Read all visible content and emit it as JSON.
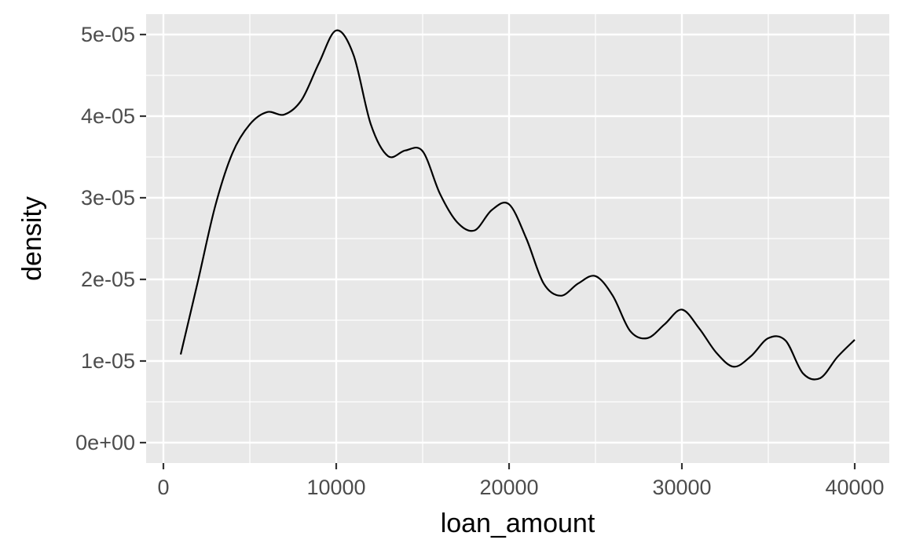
{
  "chart_data": {
    "type": "line",
    "title": "",
    "xlabel": "loan_amount",
    "ylabel": "density",
    "xlim": [
      -1000,
      42000
    ],
    "ylim": [
      -2.5e-06,
      5.25e-05
    ],
    "x_ticks": [
      {
        "value": 0,
        "label": "0"
      },
      {
        "value": 10000,
        "label": "10000"
      },
      {
        "value": 20000,
        "label": "20000"
      },
      {
        "value": 30000,
        "label": "30000"
      },
      {
        "value": 40000,
        "label": "40000"
      }
    ],
    "y_ticks": [
      {
        "value": 0,
        "label": "0e+00"
      },
      {
        "value": 1e-05,
        "label": "1e-05"
      },
      {
        "value": 2e-05,
        "label": "2e-05"
      },
      {
        "value": 3e-05,
        "label": "3e-05"
      },
      {
        "value": 4e-05,
        "label": "4e-05"
      },
      {
        "value": 5e-05,
        "label": "5e-05"
      }
    ],
    "grid": true,
    "background": "#e8e8e8",
    "line_color": "#000000",
    "series": [
      {
        "x": [
          1000,
          2000,
          3000,
          4000,
          5000,
          6000,
          7000,
          8000,
          9000,
          10000,
          11000,
          12000,
          13000,
          14000,
          15000,
          16000,
          17000,
          18000,
          19000,
          20000,
          21000,
          22000,
          23000,
          24000,
          25000,
          26000,
          27000,
          28000,
          29000,
          30000,
          31000,
          32000,
          33000,
          34000,
          35000,
          36000,
          37000,
          38000,
          39000,
          40000
        ],
        "y": [
          1.08e-05,
          1.98e-05,
          2.9e-05,
          3.55e-05,
          3.9e-05,
          4.05e-05,
          4.02e-05,
          4.2e-05,
          4.65e-05,
          5.05e-05,
          4.75e-05,
          3.9e-05,
          3.51e-05,
          3.58e-05,
          3.57e-05,
          3.05e-05,
          2.7e-05,
          2.6e-05,
          2.85e-05,
          2.92e-05,
          2.5e-05,
          1.95e-05,
          1.8e-05,
          1.95e-05,
          2.04e-05,
          1.8e-05,
          1.37e-05,
          1.28e-05,
          1.45e-05,
          1.63e-05,
          1.4e-05,
          1.1e-05,
          9.3e-06,
          1.06e-05,
          1.28e-05,
          1.25e-05,
          8.5e-06,
          7.9e-06,
          1.05e-05,
          1.26e-05
        ]
      }
    ]
  }
}
